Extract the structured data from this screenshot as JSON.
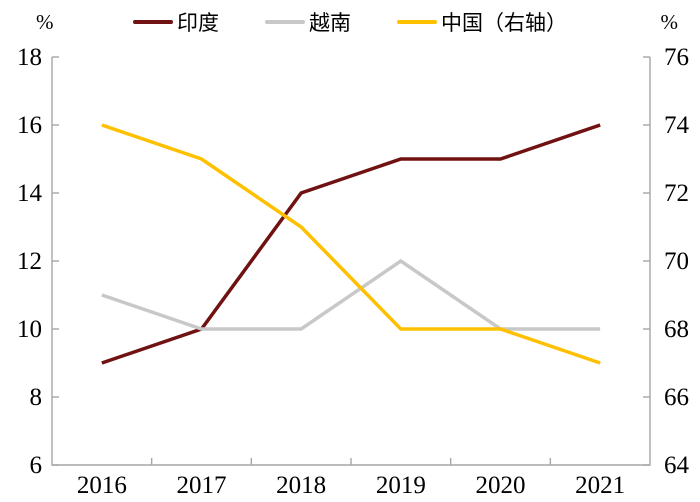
{
  "chart_data": {
    "type": "line",
    "title": "",
    "categories": [
      "2016",
      "2017",
      "2018",
      "2019",
      "2020",
      "2021"
    ],
    "series": [
      {
        "name": "印度",
        "axis": "left",
        "color": "#701112",
        "values": [
          9,
          10,
          14,
          15,
          15,
          16
        ]
      },
      {
        "name": "越南",
        "axis": "left",
        "color": "#C8C8C8",
        "values": [
          11,
          10,
          10,
          12,
          10,
          10
        ]
      },
      {
        "name": "中国（右轴）",
        "axis": "right",
        "color": "#FFC000",
        "values": [
          74,
          73,
          71,
          68,
          68,
          67
        ]
      }
    ],
    "left_axis": {
      "label": "%",
      "min": 6,
      "max": 18,
      "ticks": [
        18,
        16,
        14,
        12,
        10,
        8,
        6
      ]
    },
    "right_axis": {
      "label": "%",
      "min": 64,
      "max": 76,
      "ticks": [
        76,
        74,
        72,
        70,
        68,
        66,
        64
      ]
    },
    "legend_position": "top",
    "grid": false,
    "axis_color": "#A6A6A6",
    "text_color": "#000000"
  }
}
